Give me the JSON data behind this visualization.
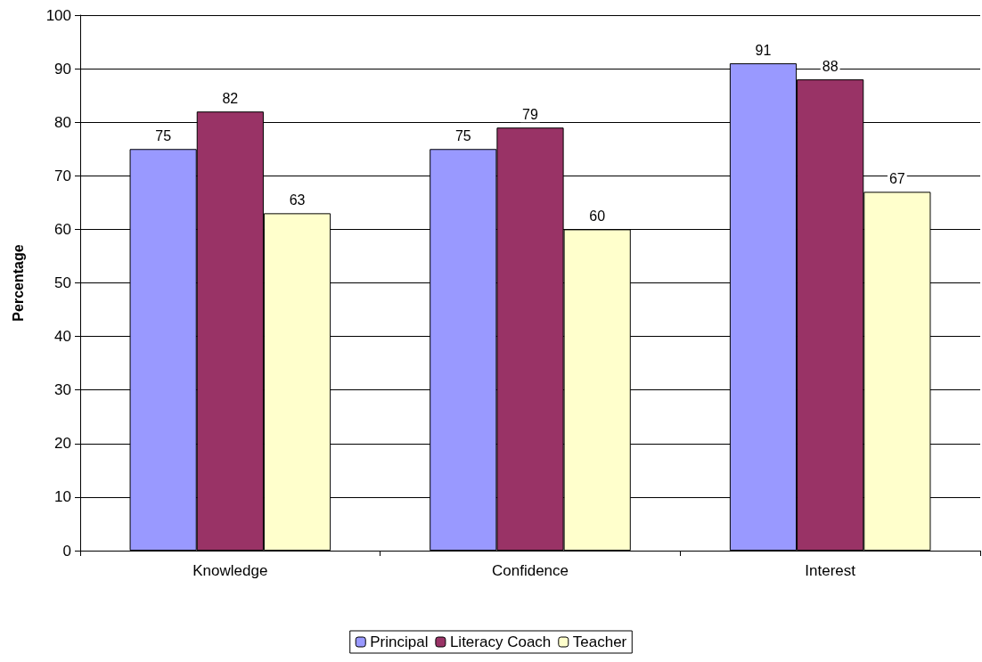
{
  "chart_data": {
    "type": "bar",
    "ylabel": "Percentage",
    "categories": [
      "Knowledge",
      "Confidence",
      "Interest"
    ],
    "series": [
      {
        "name": "Principal",
        "color": "#9999ff",
        "values": [
          75,
          75,
          91
        ]
      },
      {
        "name": "Literacy Coach",
        "color": "#993366",
        "values": [
          82,
          79,
          88
        ]
      },
      {
        "name": "Teacher",
        "color": "#ffffcc",
        "values": [
          63,
          60,
          67
        ]
      }
    ],
    "ylim": [
      0,
      100
    ],
    "yticks": [
      0,
      10,
      20,
      30,
      40,
      50,
      60,
      70,
      80,
      90,
      100
    ],
    "grid": "y",
    "legend": "bottom",
    "data_labels": true
  }
}
